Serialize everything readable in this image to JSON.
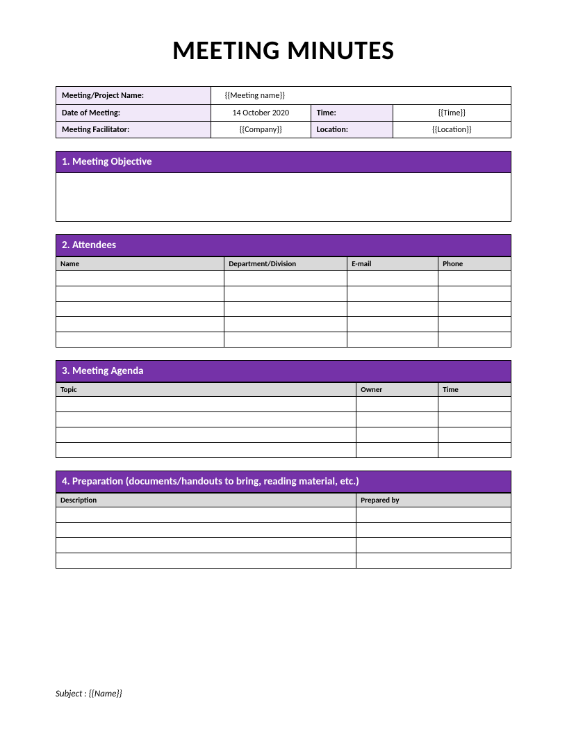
{
  "title": "MEETING MINUTES",
  "colors": {
    "section_header_bg": "#7532a8",
    "section_header_text": "#ffffff",
    "info_label_bg": "#f1e8f9",
    "col_header_bg": "#d9d9d9",
    "border": "#000000",
    "page_bg": "#ffffff"
  },
  "info": {
    "meeting_name_label": "Meeting/Project Name:",
    "meeting_name_value": "{{Meeting name}}",
    "date_label": "Date of Meeting:",
    "date_value": "14 October 2020",
    "time_label": "Time:",
    "time_value": "{{Time}}",
    "facilitator_label": "Meeting Facilitator:",
    "facilitator_value": "{{Company}}",
    "location_label": "Location:",
    "location_value": "{{Location}}"
  },
  "sections": {
    "objective": {
      "header": "1. Meeting Objective"
    },
    "attendees": {
      "header": "2. Attendees",
      "columns": [
        "Name",
        "Department/Division",
        "E-mail",
        "Phone"
      ],
      "row_count": 5,
      "col_widths_pct": [
        37,
        27,
        20,
        16
      ]
    },
    "agenda": {
      "header": "3. Meeting Agenda",
      "columns": [
        "Topic",
        "Owner",
        "Time"
      ],
      "row_count": 4,
      "col_widths_pct": [
        66,
        18,
        16
      ]
    },
    "preparation": {
      "header": "4. Preparation (documents/handouts to bring, reading material, etc.)",
      "columns": [
        "Description",
        "Prepared by"
      ],
      "row_count": 4,
      "col_widths_pct": [
        66,
        34
      ]
    }
  },
  "footer": {
    "subject_label": "Subject : ",
    "subject_value": "{{Name}}"
  }
}
